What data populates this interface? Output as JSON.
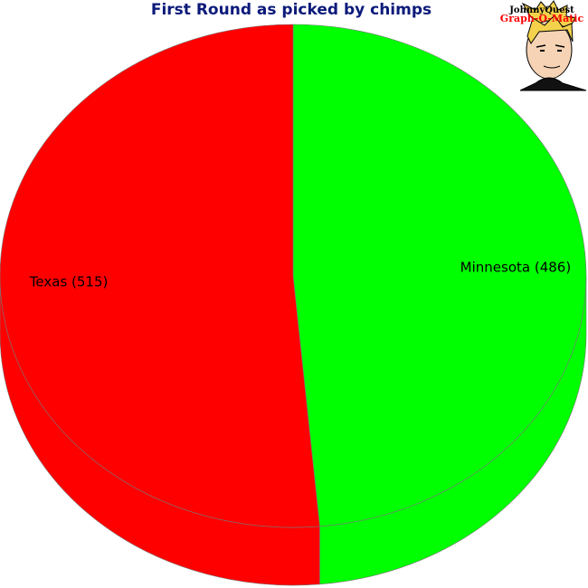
{
  "chart_data": {
    "type": "pie",
    "title": "First Round as picked by chimps",
    "style": "3d",
    "slices": [
      {
        "name": "Minnesota",
        "value": 486,
        "label": "Minnesota (486)",
        "color": "#00ff00"
      },
      {
        "name": "Texas",
        "value": 515,
        "label": "Texas (515)",
        "color": "#ff0000"
      }
    ]
  },
  "logo": {
    "line1": "JohnnyQuest",
    "line2": "Graph-O-Matic",
    "color_line1": "#000000",
    "color_line2": "#ff0000"
  },
  "colors": {
    "title": "#0b1a7a",
    "edge": "#777777"
  }
}
